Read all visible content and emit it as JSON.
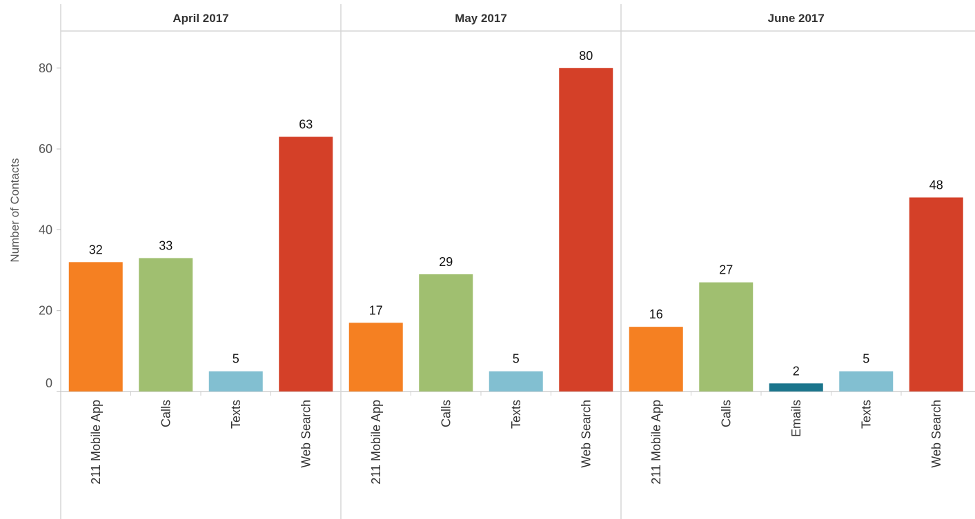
{
  "chart_data": {
    "type": "bar",
    "ylabel": "Number of Contacts",
    "ylim": [
      0,
      89
    ],
    "yticks": [
      0,
      20,
      40,
      60,
      80
    ],
    "grid": false,
    "colors": {
      "211 Mobile App": "#f58022",
      "Calls": "#a0bf70",
      "Emails": "#1b758c",
      "Texts": "#82bfd1",
      "Web Search": "#d44028"
    },
    "panels": [
      {
        "title": "April 2017",
        "categories": [
          "211 Mobile App",
          "Calls",
          "Texts",
          "Web Search"
        ],
        "values": [
          32,
          33,
          5,
          63
        ]
      },
      {
        "title": "May 2017",
        "categories": [
          "211 Mobile App",
          "Calls",
          "Texts",
          "Web Search"
        ],
        "values": [
          17,
          29,
          5,
          80
        ]
      },
      {
        "title": "June 2017",
        "categories": [
          "211 Mobile App",
          "Calls",
          "Emails",
          "Texts",
          "Web Search"
        ],
        "values": [
          16,
          27,
          2,
          5,
          48
        ]
      }
    ]
  }
}
